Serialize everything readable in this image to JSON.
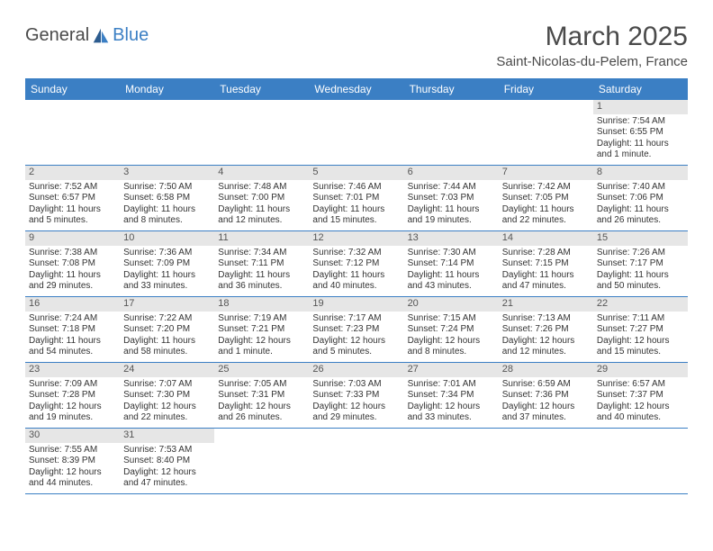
{
  "logo": {
    "text_a": "General",
    "text_b": "Blue"
  },
  "title": "March 2025",
  "location": "Saint-Nicolas-du-Pelem, France",
  "colors": {
    "header_bg": "#3b7fc4",
    "header_text": "#ffffff",
    "daynum_bg": "#e6e6e6",
    "text": "#333333",
    "rule": "#3b7fc4"
  },
  "day_names": [
    "Sunday",
    "Monday",
    "Tuesday",
    "Wednesday",
    "Thursday",
    "Friday",
    "Saturday"
  ],
  "weeks": [
    [
      null,
      null,
      null,
      null,
      null,
      null,
      {
        "n": "1",
        "sr": "Sunrise: 7:54 AM",
        "ss": "Sunset: 6:55 PM",
        "d1": "Daylight: 11 hours",
        "d2": "and 1 minute."
      }
    ],
    [
      {
        "n": "2",
        "sr": "Sunrise: 7:52 AM",
        "ss": "Sunset: 6:57 PM",
        "d1": "Daylight: 11 hours",
        "d2": "and 5 minutes."
      },
      {
        "n": "3",
        "sr": "Sunrise: 7:50 AM",
        "ss": "Sunset: 6:58 PM",
        "d1": "Daylight: 11 hours",
        "d2": "and 8 minutes."
      },
      {
        "n": "4",
        "sr": "Sunrise: 7:48 AM",
        "ss": "Sunset: 7:00 PM",
        "d1": "Daylight: 11 hours",
        "d2": "and 12 minutes."
      },
      {
        "n": "5",
        "sr": "Sunrise: 7:46 AM",
        "ss": "Sunset: 7:01 PM",
        "d1": "Daylight: 11 hours",
        "d2": "and 15 minutes."
      },
      {
        "n": "6",
        "sr": "Sunrise: 7:44 AM",
        "ss": "Sunset: 7:03 PM",
        "d1": "Daylight: 11 hours",
        "d2": "and 19 minutes."
      },
      {
        "n": "7",
        "sr": "Sunrise: 7:42 AM",
        "ss": "Sunset: 7:05 PM",
        "d1": "Daylight: 11 hours",
        "d2": "and 22 minutes."
      },
      {
        "n": "8",
        "sr": "Sunrise: 7:40 AM",
        "ss": "Sunset: 7:06 PM",
        "d1": "Daylight: 11 hours",
        "d2": "and 26 minutes."
      }
    ],
    [
      {
        "n": "9",
        "sr": "Sunrise: 7:38 AM",
        "ss": "Sunset: 7:08 PM",
        "d1": "Daylight: 11 hours",
        "d2": "and 29 minutes."
      },
      {
        "n": "10",
        "sr": "Sunrise: 7:36 AM",
        "ss": "Sunset: 7:09 PM",
        "d1": "Daylight: 11 hours",
        "d2": "and 33 minutes."
      },
      {
        "n": "11",
        "sr": "Sunrise: 7:34 AM",
        "ss": "Sunset: 7:11 PM",
        "d1": "Daylight: 11 hours",
        "d2": "and 36 minutes."
      },
      {
        "n": "12",
        "sr": "Sunrise: 7:32 AM",
        "ss": "Sunset: 7:12 PM",
        "d1": "Daylight: 11 hours",
        "d2": "and 40 minutes."
      },
      {
        "n": "13",
        "sr": "Sunrise: 7:30 AM",
        "ss": "Sunset: 7:14 PM",
        "d1": "Daylight: 11 hours",
        "d2": "and 43 minutes."
      },
      {
        "n": "14",
        "sr": "Sunrise: 7:28 AM",
        "ss": "Sunset: 7:15 PM",
        "d1": "Daylight: 11 hours",
        "d2": "and 47 minutes."
      },
      {
        "n": "15",
        "sr": "Sunrise: 7:26 AM",
        "ss": "Sunset: 7:17 PM",
        "d1": "Daylight: 11 hours",
        "d2": "and 50 minutes."
      }
    ],
    [
      {
        "n": "16",
        "sr": "Sunrise: 7:24 AM",
        "ss": "Sunset: 7:18 PM",
        "d1": "Daylight: 11 hours",
        "d2": "and 54 minutes."
      },
      {
        "n": "17",
        "sr": "Sunrise: 7:22 AM",
        "ss": "Sunset: 7:20 PM",
        "d1": "Daylight: 11 hours",
        "d2": "and 58 minutes."
      },
      {
        "n": "18",
        "sr": "Sunrise: 7:19 AM",
        "ss": "Sunset: 7:21 PM",
        "d1": "Daylight: 12 hours",
        "d2": "and 1 minute."
      },
      {
        "n": "19",
        "sr": "Sunrise: 7:17 AM",
        "ss": "Sunset: 7:23 PM",
        "d1": "Daylight: 12 hours",
        "d2": "and 5 minutes."
      },
      {
        "n": "20",
        "sr": "Sunrise: 7:15 AM",
        "ss": "Sunset: 7:24 PM",
        "d1": "Daylight: 12 hours",
        "d2": "and 8 minutes."
      },
      {
        "n": "21",
        "sr": "Sunrise: 7:13 AM",
        "ss": "Sunset: 7:26 PM",
        "d1": "Daylight: 12 hours",
        "d2": "and 12 minutes."
      },
      {
        "n": "22",
        "sr": "Sunrise: 7:11 AM",
        "ss": "Sunset: 7:27 PM",
        "d1": "Daylight: 12 hours",
        "d2": "and 15 minutes."
      }
    ],
    [
      {
        "n": "23",
        "sr": "Sunrise: 7:09 AM",
        "ss": "Sunset: 7:28 PM",
        "d1": "Daylight: 12 hours",
        "d2": "and 19 minutes."
      },
      {
        "n": "24",
        "sr": "Sunrise: 7:07 AM",
        "ss": "Sunset: 7:30 PM",
        "d1": "Daylight: 12 hours",
        "d2": "and 22 minutes."
      },
      {
        "n": "25",
        "sr": "Sunrise: 7:05 AM",
        "ss": "Sunset: 7:31 PM",
        "d1": "Daylight: 12 hours",
        "d2": "and 26 minutes."
      },
      {
        "n": "26",
        "sr": "Sunrise: 7:03 AM",
        "ss": "Sunset: 7:33 PM",
        "d1": "Daylight: 12 hours",
        "d2": "and 29 minutes."
      },
      {
        "n": "27",
        "sr": "Sunrise: 7:01 AM",
        "ss": "Sunset: 7:34 PM",
        "d1": "Daylight: 12 hours",
        "d2": "and 33 minutes."
      },
      {
        "n": "28",
        "sr": "Sunrise: 6:59 AM",
        "ss": "Sunset: 7:36 PM",
        "d1": "Daylight: 12 hours",
        "d2": "and 37 minutes."
      },
      {
        "n": "29",
        "sr": "Sunrise: 6:57 AM",
        "ss": "Sunset: 7:37 PM",
        "d1": "Daylight: 12 hours",
        "d2": "and 40 minutes."
      }
    ],
    [
      {
        "n": "30",
        "sr": "Sunrise: 7:55 AM",
        "ss": "Sunset: 8:39 PM",
        "d1": "Daylight: 12 hours",
        "d2": "and 44 minutes."
      },
      {
        "n": "31",
        "sr": "Sunrise: 7:53 AM",
        "ss": "Sunset: 8:40 PM",
        "d1": "Daylight: 12 hours",
        "d2": "and 47 minutes."
      },
      null,
      null,
      null,
      null,
      null
    ]
  ]
}
